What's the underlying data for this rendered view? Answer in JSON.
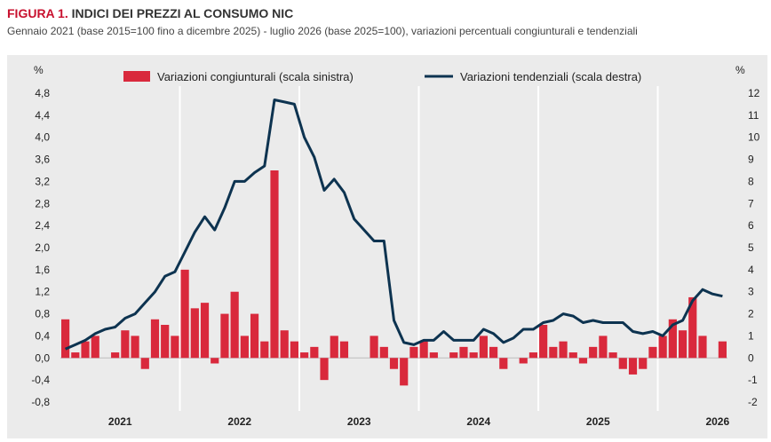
{
  "header": {
    "figure_label": "FIGURA 1.",
    "title": "INDICI DEI PREZZI AL CONSUMO NIC",
    "subtitle": "Gennaio 2021 (base 2015=100 fino a dicembre 2025) - luglio 2026 (base 2025=100), variazioni percentuali congiunturali e tendenziali"
  },
  "colors": {
    "panel_background": "#ebebeb",
    "bar": "#d9293c",
    "line": "#0d3350",
    "title_accent": "#c8102e"
  },
  "chart_data": {
    "type": "bar+line",
    "left_axis": {
      "unit": "%",
      "ylim": [
        -0.8,
        4.8
      ],
      "ticks": [
        "4,8",
        "4,4",
        "4,0",
        "3,6",
        "3,2",
        "2,8",
        "2,4",
        "2,0",
        "1,6",
        "1,2",
        "0,8",
        "0,4",
        "0,0",
        "-0,4",
        "-0,8"
      ]
    },
    "right_axis": {
      "unit": "%",
      "ylim": [
        -2,
        12
      ],
      "ticks": [
        "12",
        "11",
        "10",
        "9",
        "8",
        "7",
        "6",
        "5",
        "4",
        "3",
        "2",
        "1",
        "0",
        "-1",
        "-2"
      ]
    },
    "x_axis": {
      "start": "2021-01",
      "years": [
        "2021",
        "2022",
        "2023",
        "2024",
        "2025",
        "2026"
      ]
    },
    "grid": "vertical lines at year boundaries",
    "legend_position": "top",
    "series": [
      {
        "name": "Variazioni congiunturali (scala sinistra)",
        "type": "bar",
        "axis": "left",
        "values": [
          0.7,
          0.1,
          0.3,
          0.4,
          0.0,
          0.1,
          0.5,
          0.4,
          -0.2,
          0.7,
          0.6,
          0.4,
          1.6,
          0.9,
          1.0,
          -0.1,
          0.8,
          1.2,
          0.4,
          0.8,
          0.3,
          3.4,
          0.5,
          0.3,
          0.1,
          0.2,
          -0.4,
          0.4,
          0.3,
          0.0,
          0.0,
          0.4,
          0.2,
          -0.2,
          -0.5,
          0.2,
          0.3,
          0.1,
          0.0,
          0.1,
          0.2,
          0.1,
          0.4,
          0.2,
          -0.2,
          0.0,
          -0.1,
          0.1,
          0.6,
          0.2,
          0.3,
          0.1,
          -0.1,
          0.2,
          0.4,
          0.1,
          -0.2,
          -0.3,
          -0.2,
          0.2,
          0.4,
          0.7,
          0.5,
          1.1,
          0.4,
          0.0,
          0.3
        ]
      },
      {
        "name": "Variazioni tendenziali (scala destra)",
        "type": "line",
        "axis": "right",
        "values": [
          0.4,
          0.6,
          0.8,
          1.1,
          1.3,
          1.4,
          1.8,
          2.0,
          2.5,
          3.0,
          3.7,
          3.9,
          4.8,
          5.7,
          6.4,
          5.8,
          6.8,
          8.0,
          8.0,
          8.4,
          8.7,
          11.7,
          11.6,
          11.5,
          10.0,
          9.1,
          7.6,
          8.1,
          7.5,
          6.3,
          5.8,
          5.3,
          5.3,
          1.7,
          0.7,
          0.6,
          0.8,
          0.8,
          1.2,
          0.8,
          0.8,
          0.8,
          1.3,
          1.1,
          0.7,
          0.9,
          1.3,
          1.3,
          1.6,
          1.7,
          2.0,
          1.9,
          1.6,
          1.7,
          1.6,
          1.6,
          1.6,
          1.2,
          1.1,
          1.2,
          1.0,
          1.5,
          1.7,
          2.6,
          3.1,
          2.9,
          2.8
        ]
      }
    ]
  }
}
